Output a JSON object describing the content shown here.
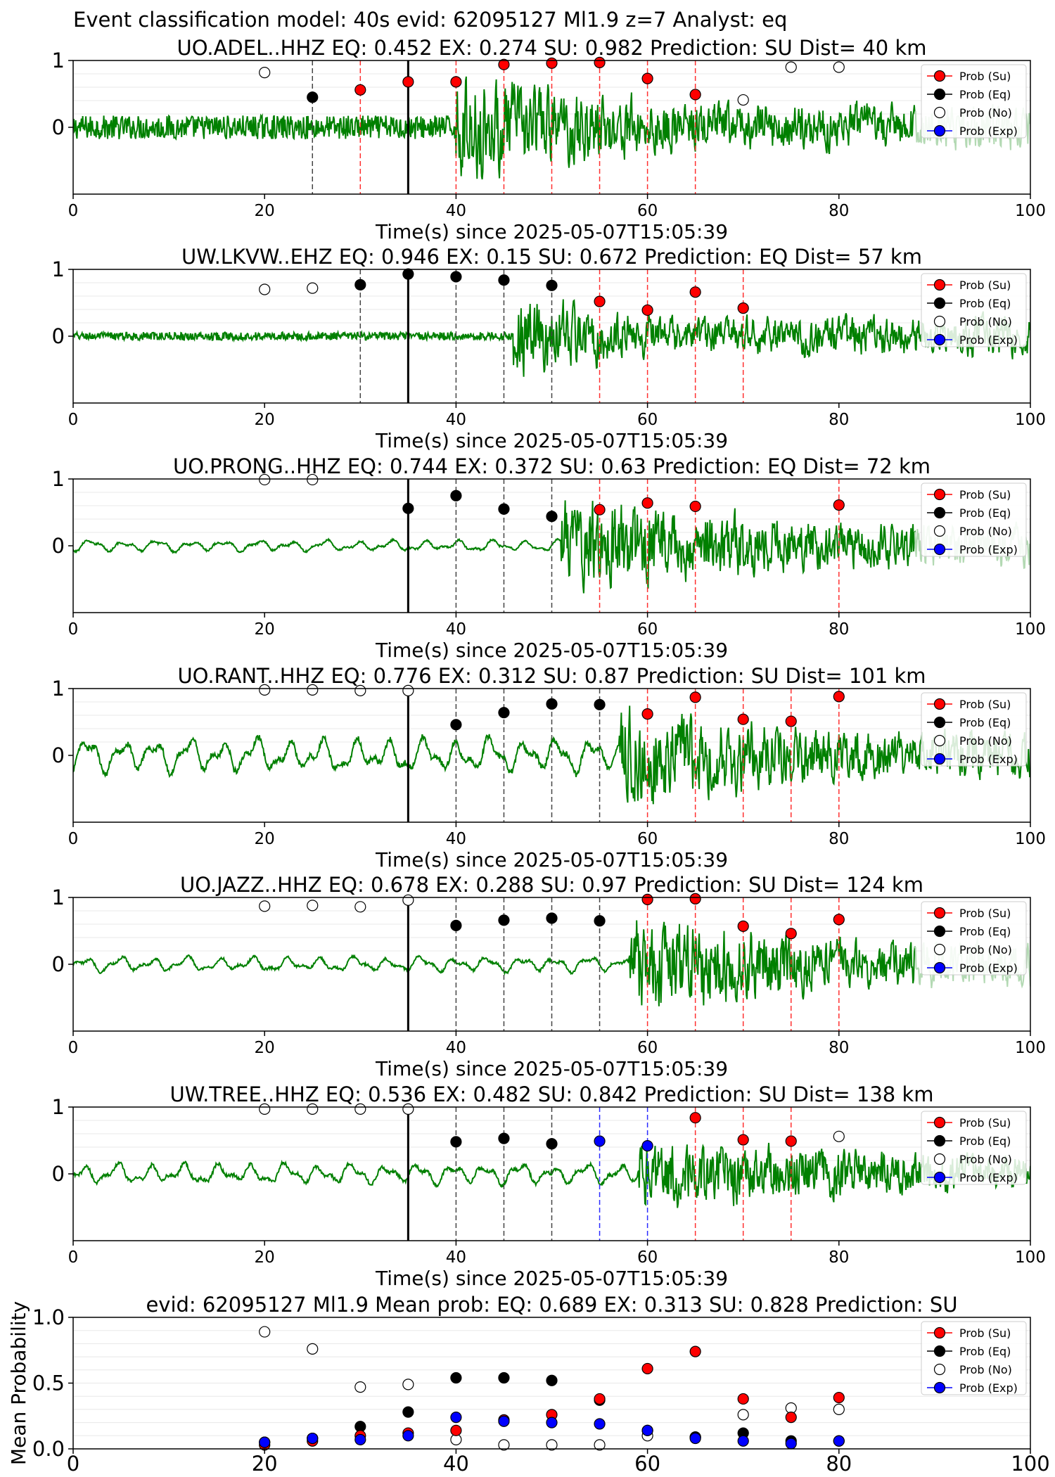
{
  "figure_title": "Event classification model: 40s evid: 62095127 Ml1.9 z=7 Analyst: eq",
  "legend_labels": [
    "Prob (Su)",
    "Prob (Eq)",
    "Prob (No)",
    "Prob (Exp)"
  ],
  "colors": {
    "su": "#ff0000",
    "eq": "#000000",
    "no": "#ffffff",
    "exp": "#0000ff",
    "waveform": "#008000",
    "waveform_faded": "#b3d9b3"
  },
  "chart_data": [
    {
      "type": "scatter",
      "title": "UO.ADEL..HHZ   EQ: 0.452  EX: 0.274  SU: 0.982   Prediction: SU    Dist= 40 km",
      "xlabel": "Time(s) since 2025-05-07T15:05:39",
      "xlim": [
        0,
        100
      ],
      "ylim": [
        -1,
        1
      ],
      "xticks": [
        "0",
        "20",
        "40",
        "60",
        "80",
        "100"
      ],
      "yticks": [
        "0",
        "1"
      ],
      "grid": true,
      "legend": "top-right",
      "waveform": {
        "onset": 40,
        "fade_start": 88,
        "pre_amp": 0.18,
        "pre_style": "noise",
        "post_amp": 0.6,
        "decay_end": 65
      },
      "points": {
        "no": [
          [
            20,
            0.82
          ],
          [
            70,
            0.41
          ],
          [
            75,
            0.9
          ],
          [
            80,
            0.9
          ]
        ],
        "eq": [
          [
            25,
            0.45
          ]
        ],
        "su": [
          [
            30,
            0.56
          ],
          [
            35,
            0.68
          ],
          [
            40,
            0.68
          ],
          [
            45,
            0.94
          ],
          [
            50,
            0.96
          ],
          [
            55,
            0.97
          ],
          [
            60,
            0.73
          ],
          [
            65,
            0.49
          ]
        ],
        "exp": []
      },
      "vlines": {
        "eq": [
          25
        ],
        "su": [
          30,
          40,
          45,
          50,
          55,
          60,
          65
        ],
        "exp": [],
        "pick": 35
      }
    },
    {
      "type": "scatter",
      "title": "UW.LKVW..EHZ   EQ: 0.946  EX: 0.15  SU: 0.672   Prediction: EQ    Dist= 57 km",
      "xlabel": "Time(s) since 2025-05-07T15:05:39",
      "xlim": [
        0,
        100
      ],
      "ylim": [
        -1,
        1
      ],
      "xticks": [
        "0",
        "20",
        "40",
        "60",
        "80",
        "100"
      ],
      "yticks": [
        "0",
        "1"
      ],
      "grid": true,
      "legend": "top-right",
      "waveform": {
        "onset": 46,
        "fade_start": 101,
        "pre_amp": 0.06,
        "pre_style": "noise",
        "post_amp": 0.45,
        "decay_end": 62
      },
      "points": {
        "no": [
          [
            20,
            0.7
          ],
          [
            25,
            0.72
          ]
        ],
        "eq": [
          [
            30,
            0.77
          ],
          [
            35,
            0.93
          ],
          [
            40,
            0.89
          ],
          [
            45,
            0.84
          ],
          [
            50,
            0.76
          ]
        ],
        "su": [
          [
            55,
            0.52
          ],
          [
            60,
            0.39
          ],
          [
            65,
            0.66
          ],
          [
            70,
            0.42
          ]
        ],
        "exp": []
      },
      "vlines": {
        "eq": [
          30,
          40,
          45,
          50
        ],
        "su": [
          55,
          60,
          65,
          70
        ],
        "exp": [],
        "pick": 35
      }
    },
    {
      "type": "scatter",
      "title": "UO.PRONG..HHZ   EQ: 0.744  EX: 0.372  SU: 0.63   Prediction: EQ    Dist= 72 km",
      "xlabel": "Time(s) since 2025-05-07T15:05:39",
      "xlim": [
        0,
        100
      ],
      "ylim": [
        -1,
        1
      ],
      "xticks": [
        "0",
        "20",
        "40",
        "60",
        "80",
        "100"
      ],
      "yticks": [
        "0",
        "1"
      ],
      "grid": true,
      "legend": "top-right",
      "waveform": {
        "onset": 51,
        "fade_start": 88,
        "pre_amp": 0.1,
        "pre_style": "smooth",
        "post_amp": 0.55,
        "decay_end": 80
      },
      "points": {
        "no": [
          [
            20,
            0.99
          ],
          [
            25,
            0.99
          ]
        ],
        "eq": [
          [
            35,
            0.56
          ],
          [
            40,
            0.75
          ],
          [
            45,
            0.55
          ],
          [
            50,
            0.44
          ]
        ],
        "su": [
          [
            55,
            0.54
          ],
          [
            60,
            0.64
          ],
          [
            65,
            0.59
          ],
          [
            80,
            0.61
          ]
        ],
        "exp": []
      },
      "vlines": {
        "eq": [
          40,
          45,
          50
        ],
        "su": [
          55,
          60,
          65,
          80
        ],
        "exp": [],
        "pick": 35
      }
    },
    {
      "type": "scatter",
      "title": "UO.RANT..HHZ   EQ: 0.776  EX: 0.312  SU: 0.87   Prediction: SU    Dist= 101 km",
      "xlabel": "Time(s) since 2025-05-07T15:05:39",
      "xlim": [
        0,
        100
      ],
      "ylim": [
        -1,
        1
      ],
      "xticks": [
        "0",
        "20",
        "40",
        "60",
        "80",
        "100"
      ],
      "yticks": [
        "0",
        "1"
      ],
      "grid": true,
      "legend": "top-right",
      "waveform": {
        "onset": 57,
        "fade_start": 101,
        "pre_amp": 0.3,
        "pre_style": "smooth",
        "post_amp": 0.6,
        "decay_end": 82
      },
      "points": {
        "no": [
          [
            20,
            0.98
          ],
          [
            25,
            0.98
          ],
          [
            30,
            0.97
          ],
          [
            35,
            0.97
          ]
        ],
        "eq": [
          [
            40,
            0.46
          ],
          [
            45,
            0.64
          ],
          [
            50,
            0.77
          ],
          [
            55,
            0.76
          ]
        ],
        "su": [
          [
            60,
            0.62
          ],
          [
            65,
            0.87
          ],
          [
            70,
            0.54
          ],
          [
            75,
            0.51
          ],
          [
            80,
            0.88
          ]
        ],
        "exp": []
      },
      "vlines": {
        "eq": [
          40,
          45,
          50,
          55
        ],
        "su": [
          60,
          65,
          70,
          75,
          80
        ],
        "exp": [],
        "pick": 35
      }
    },
    {
      "type": "scatter",
      "title": "UO.JAZZ..HHZ   EQ: 0.678  EX: 0.288  SU: 0.97   Prediction: SU    Dist= 124 km",
      "xlabel": "Time(s) since 2025-05-07T15:05:39",
      "xlim": [
        0,
        100
      ],
      "ylim": [
        -1,
        1
      ],
      "xticks": [
        "0",
        "20",
        "40",
        "60",
        "80",
        "100"
      ],
      "yticks": [
        "0",
        "1"
      ],
      "grid": true,
      "legend": "top-right",
      "waveform": {
        "onset": 58,
        "fade_start": 88,
        "pre_amp": 0.13,
        "pre_style": "smooth",
        "post_amp": 0.6,
        "decay_end": 82
      },
      "points": {
        "no": [
          [
            20,
            0.87
          ],
          [
            25,
            0.88
          ],
          [
            30,
            0.86
          ],
          [
            35,
            0.96
          ]
        ],
        "eq": [
          [
            40,
            0.58
          ],
          [
            45,
            0.66
          ],
          [
            50,
            0.69
          ],
          [
            55,
            0.65
          ]
        ],
        "su": [
          [
            60,
            0.97
          ],
          [
            65,
            0.98
          ],
          [
            70,
            0.57
          ],
          [
            75,
            0.46
          ],
          [
            80,
            0.67
          ]
        ],
        "exp": []
      },
      "vlines": {
        "eq": [
          40,
          45,
          50,
          55
        ],
        "su": [
          60,
          65,
          70,
          75,
          80
        ],
        "exp": [],
        "pick": 35
      }
    },
    {
      "type": "scatter",
      "title": "UW.TREE..HHZ   EQ: 0.536  EX: 0.482  SU: 0.842   Prediction: SU    Dist= 138 km",
      "xlabel": "Time(s) since 2025-05-07T15:05:39",
      "xlim": [
        0,
        100
      ],
      "ylim": [
        -1,
        1
      ],
      "xticks": [
        "0",
        "20",
        "40",
        "60",
        "80",
        "100"
      ],
      "yticks": [
        "0",
        "1"
      ],
      "grid": true,
      "legend": "top-right",
      "waveform": {
        "onset": 59,
        "fade_start": 101,
        "pre_amp": 0.18,
        "pre_style": "smooth",
        "post_amp": 0.38,
        "decay_end": 95
      },
      "points": {
        "no": [
          [
            20,
            0.97
          ],
          [
            25,
            0.97
          ],
          [
            30,
            0.97
          ],
          [
            35,
            0.97
          ],
          [
            80,
            0.56
          ]
        ],
        "eq": [
          [
            40,
            0.48
          ],
          [
            45,
            0.53
          ],
          [
            50,
            0.45
          ]
        ],
        "su": [
          [
            65,
            0.84
          ],
          [
            70,
            0.51
          ],
          [
            75,
            0.49
          ]
        ],
        "exp": [
          [
            55,
            0.49
          ],
          [
            60,
            0.42
          ]
        ]
      },
      "vlines": {
        "eq": [
          40,
          45,
          50
        ],
        "su": [
          65,
          70,
          75
        ],
        "exp": [
          55,
          60
        ],
        "pick": 35
      }
    },
    {
      "type": "scatter",
      "title": "evid: 62095127  Ml1.9   Mean prob:   EQ: 0.689  EX: 0.313  SU: 0.828   Prediction: SU",
      "xlabel": "",
      "ylabel": "Mean Probability",
      "xlim": [
        0,
        100
      ],
      "ylim": [
        0,
        1
      ],
      "xticks": [
        "0",
        "20",
        "40",
        "60",
        "80",
        "100"
      ],
      "yticks": [
        "0.0",
        "0.5",
        "1.0"
      ],
      "grid": true,
      "legend": "top-right",
      "points": {
        "no": [
          [
            20,
            0.89
          ],
          [
            25,
            0.76
          ],
          [
            30,
            0.47
          ],
          [
            35,
            0.49
          ],
          [
            40,
            0.07
          ],
          [
            45,
            0.03
          ],
          [
            50,
            0.03
          ],
          [
            55,
            0.03
          ],
          [
            60,
            0.1
          ],
          [
            65,
            0.09
          ],
          [
            70,
            0.26
          ],
          [
            75,
            0.31
          ],
          [
            80,
            0.3
          ]
        ],
        "eq": [
          [
            20,
            0.05
          ],
          [
            25,
            0.08
          ],
          [
            30,
            0.17
          ],
          [
            35,
            0.28
          ],
          [
            40,
            0.54
          ],
          [
            45,
            0.54
          ],
          [
            50,
            0.52
          ],
          [
            55,
            0.37
          ],
          [
            60,
            0.14
          ],
          [
            65,
            0.09
          ],
          [
            70,
            0.12
          ],
          [
            75,
            0.06
          ],
          [
            80,
            0.06
          ]
        ],
        "su": [
          [
            20,
            0.03
          ],
          [
            25,
            0.06
          ],
          [
            30,
            0.1
          ],
          [
            35,
            0.12
          ],
          [
            40,
            0.14
          ],
          [
            45,
            0.22
          ],
          [
            50,
            0.26
          ],
          [
            55,
            0.38
          ],
          [
            60,
            0.61
          ],
          [
            65,
            0.74
          ],
          [
            70,
            0.38
          ],
          [
            75,
            0.24
          ],
          [
            80,
            0.39
          ]
        ],
        "exp": [
          [
            20,
            0.05
          ],
          [
            25,
            0.08
          ],
          [
            30,
            0.07
          ],
          [
            35,
            0.1
          ],
          [
            40,
            0.24
          ],
          [
            45,
            0.21
          ],
          [
            50,
            0.2
          ],
          [
            55,
            0.19
          ],
          [
            60,
            0.14
          ],
          [
            65,
            0.08
          ],
          [
            70,
            0.06
          ],
          [
            75,
            0.04
          ],
          [
            80,
            0.06
          ]
        ]
      },
      "vlines": {
        "eq": [],
        "su": [],
        "exp": [],
        "pick": null
      }
    }
  ]
}
